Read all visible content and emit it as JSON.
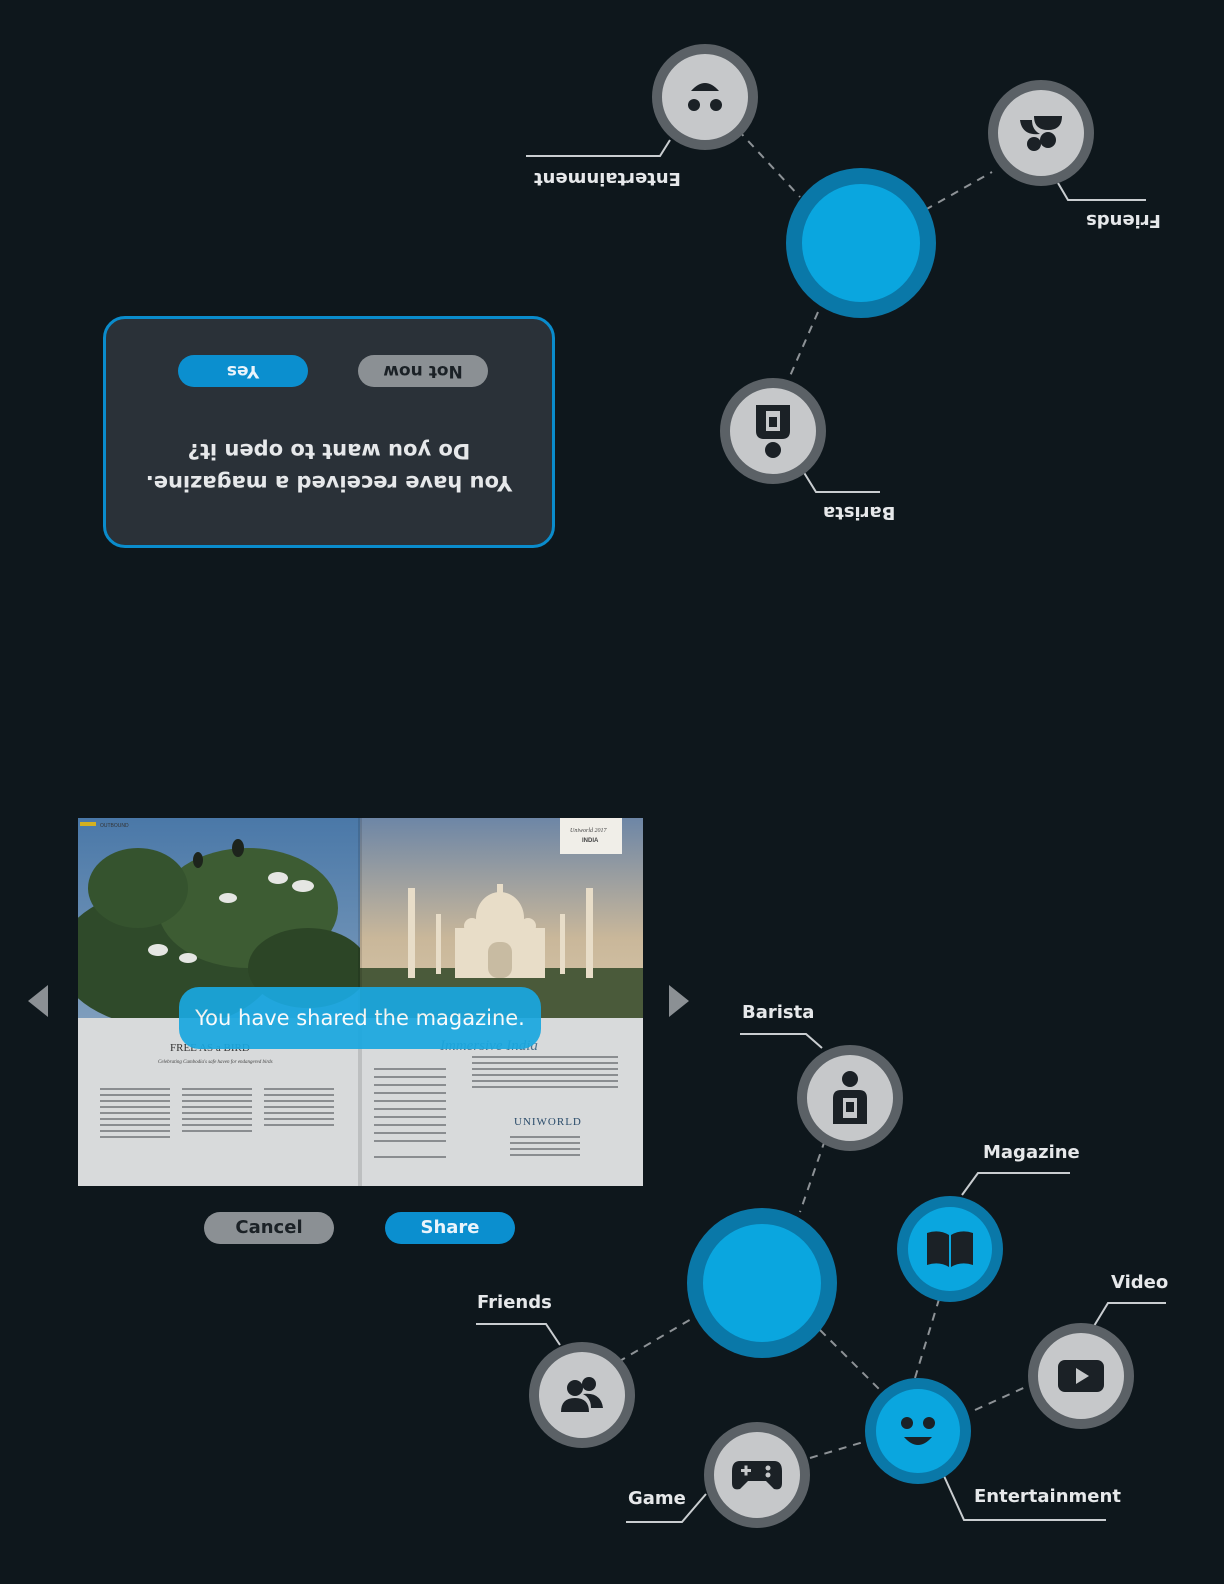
{
  "top_menu": {
    "orientation": "upside-down",
    "nodes": [
      {
        "name": "center",
        "color": "#0aa6df"
      },
      {
        "label": "Entertainment",
        "icon": "face-icon"
      },
      {
        "label": "Friends",
        "icon": "friends-icon"
      },
      {
        "label": "Barista",
        "icon": "barista-icon"
      }
    ]
  },
  "dialog": {
    "line1": "You have received a magazine.",
    "line2": "Do you want to open it?",
    "yes_label": "Yes",
    "no_label": "Not now"
  },
  "magazine_viewer": {
    "left_page": {
      "header": "OUTBOUND",
      "title": "FREE AS a BIRD",
      "subtitle": "Celebrating Cambodia's safe haven for endangered birds"
    },
    "right_page": {
      "badge_line1": "Uniworld 2017",
      "badge_line2": "INDIA",
      "title": "Immersive India",
      "brand": "UNIWORLD"
    },
    "toast": "You have shared the magazine.",
    "cancel_label": "Cancel",
    "share_label": "Share"
  },
  "bottom_menu": {
    "nodes": [
      {
        "label": "Barista",
        "icon": "barista-icon"
      },
      {
        "label": "Magazine",
        "icon": "book-icon"
      },
      {
        "label": "Friends",
        "icon": "friends-icon"
      },
      {
        "label": "Video",
        "icon": "play-icon"
      },
      {
        "label": "Game",
        "icon": "gamepad-icon"
      },
      {
        "label": "Entertainment",
        "icon": "face-icon"
      }
    ]
  },
  "colors": {
    "background": "#0e171c",
    "accent": "#0aa6df",
    "node_grey": "#c6c8ca"
  }
}
